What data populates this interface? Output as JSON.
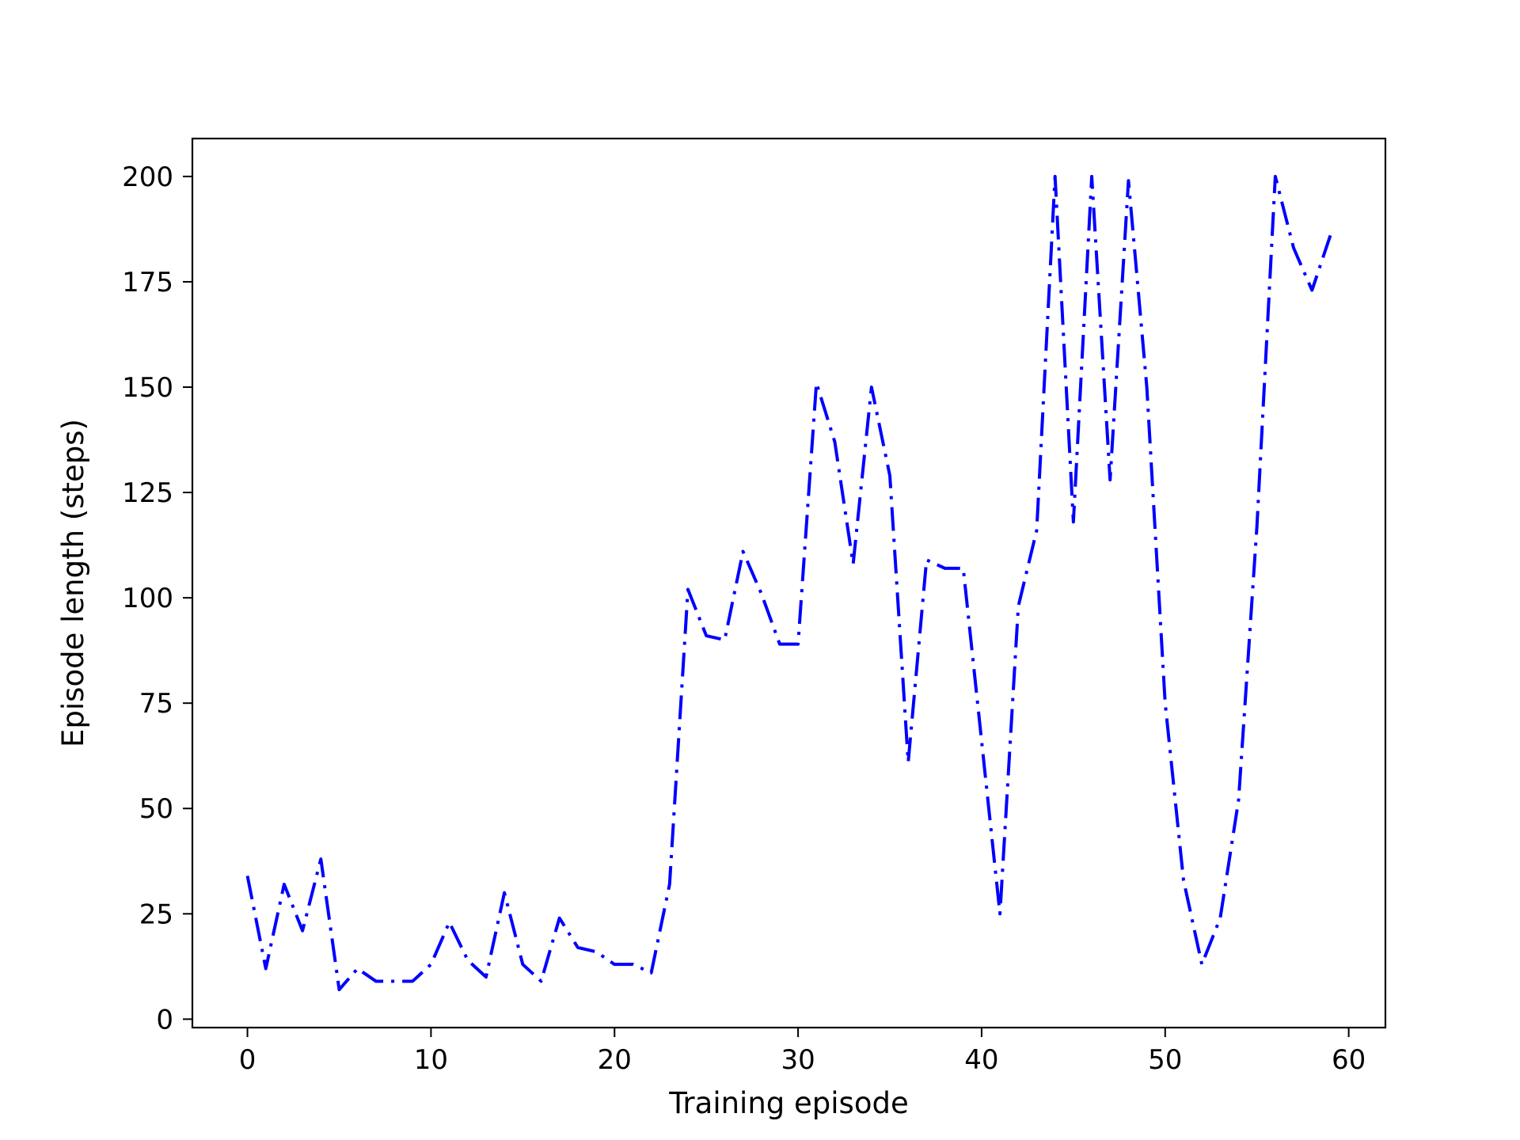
{
  "chart_data": {
    "type": "line",
    "title": "",
    "xlabel": "Training episode",
    "ylabel": "Episode length (steps)",
    "xlim": [
      -3,
      62
    ],
    "ylim": [
      -2,
      209
    ],
    "xticks": [
      0,
      10,
      20,
      30,
      40,
      50,
      60
    ],
    "yticks": [
      0,
      25,
      50,
      75,
      100,
      125,
      150,
      175,
      200
    ],
    "grid": false,
    "legend": "none",
    "series": [
      {
        "color": "#0000ff",
        "line_style": "dash-dot",
        "x": [
          0,
          1,
          2,
          3,
          4,
          5,
          6,
          7,
          8,
          9,
          10,
          11,
          12,
          13,
          14,
          15,
          16,
          17,
          18,
          19,
          20,
          21,
          22,
          23,
          24,
          25,
          26,
          27,
          28,
          29,
          30,
          31,
          32,
          33,
          34,
          35,
          36,
          37,
          38,
          39,
          40,
          41,
          42,
          43,
          44,
          45,
          46,
          47,
          48,
          49,
          50,
          51,
          52,
          53,
          54,
          55,
          56,
          57,
          58,
          59
        ],
        "values": [
          34,
          12,
          32,
          21,
          38,
          7,
          12,
          9,
          9,
          9,
          13,
          23,
          14,
          10,
          30,
          13,
          9,
          24,
          17,
          16,
          13,
          13,
          11,
          32,
          102,
          91,
          90,
          111,
          101,
          89,
          89,
          151,
          137,
          108,
          150,
          129,
          61,
          109,
          107,
          107,
          66,
          25,
          98,
          116,
          200,
          118,
          200,
          128,
          199,
          150,
          75,
          33,
          13,
          24,
          52,
          117,
          200,
          183,
          173,
          186
        ]
      }
    ]
  }
}
